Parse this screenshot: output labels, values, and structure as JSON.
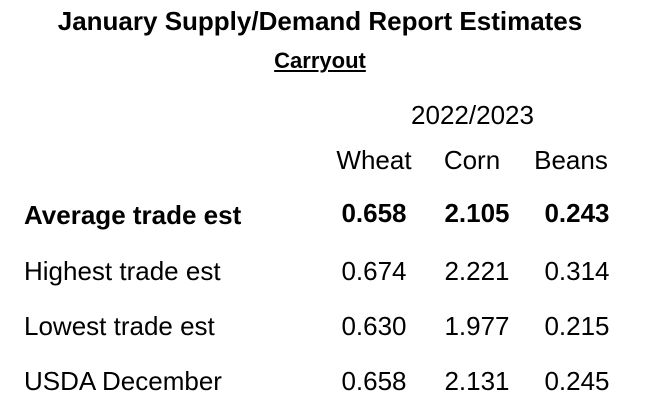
{
  "chart_data": {
    "type": "table",
    "title": "January Supply/Demand Report Estimates",
    "subtitle": "Carryout",
    "period": "2022/2023",
    "columns": [
      "Wheat",
      "Corn",
      "Beans"
    ],
    "rows": [
      {
        "label": "Average trade est",
        "values": [
          "0.658",
          "2.105",
          "0.243"
        ],
        "bold": true
      },
      {
        "label": "Highest trade est",
        "values": [
          "0.674",
          "2.221",
          "0.314"
        ],
        "bold": false
      },
      {
        "label": "Lowest trade est",
        "values": [
          "0.630",
          "1.977",
          "0.215"
        ],
        "bold": false
      },
      {
        "label": "USDA December",
        "values": [
          "0.658",
          "2.131",
          "0.245"
        ],
        "bold": false
      }
    ]
  }
}
